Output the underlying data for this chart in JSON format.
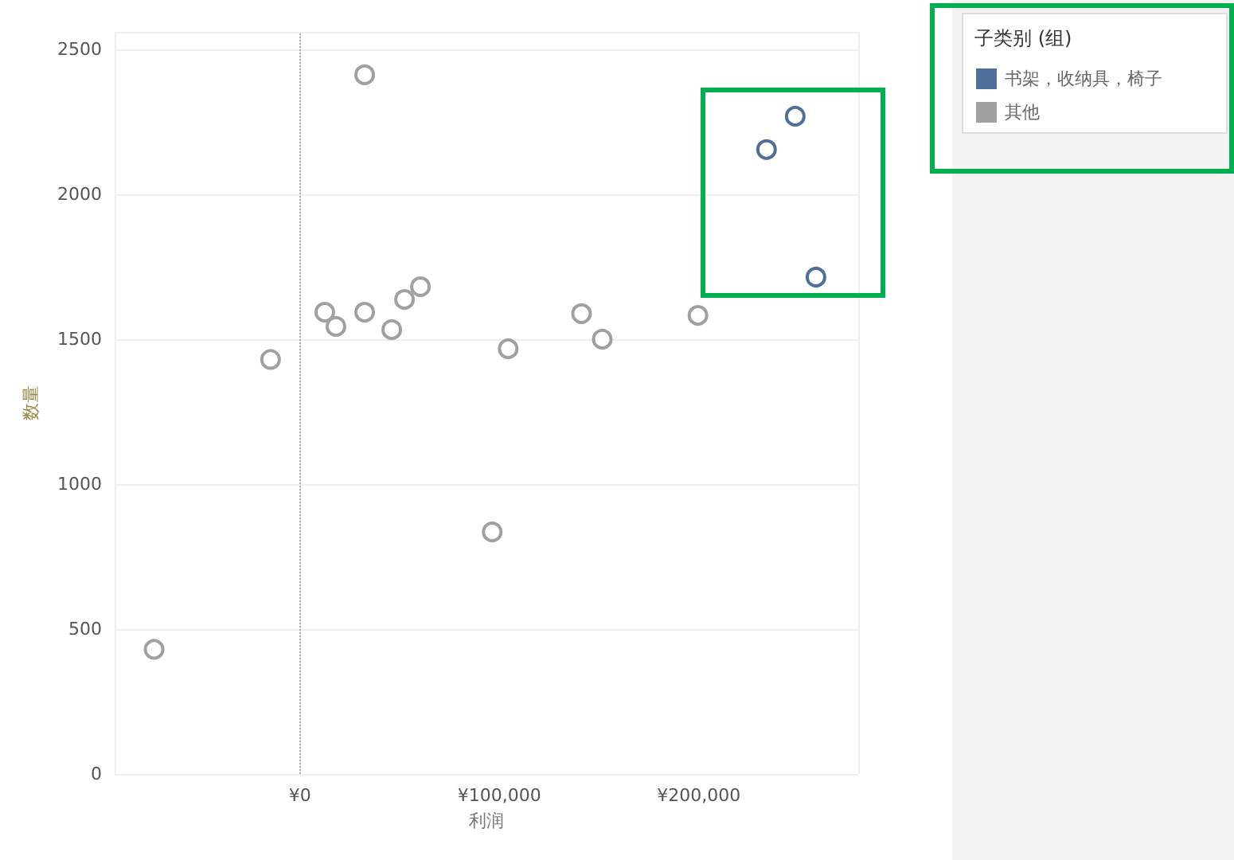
{
  "chart_data": {
    "type": "scatter",
    "xlabel": "利润",
    "ylabel": "数量",
    "legend_title": "子类别 (组)",
    "legend": "top right",
    "grid": true,
    "marker": "circle",
    "xlim": [
      -93000,
      280000
    ],
    "ylim": [
      0,
      2560
    ],
    "xticks": [
      {
        "value": 0,
        "label": "¥0"
      },
      {
        "value": 100000,
        "label": "¥100,000"
      },
      {
        "value": 200000,
        "label": "¥200,000"
      }
    ],
    "yticks": [
      0,
      500,
      1000,
      1500,
      2000,
      2500
    ],
    "ref_lines": [
      {
        "axis": "x",
        "value": 0,
        "color": "#aaaaaa",
        "line_style": "dotted"
      }
    ],
    "series": [
      {
        "name": "书架，收纳具，椅子",
        "color": "#4e6f9a",
        "x": [
          234000,
          248400,
          258800
        ],
        "values": [
          2154,
          2269,
          1714
        ]
      },
      {
        "name": "其他",
        "color": "#a0a0a0",
        "x": [
          -73200,
          -14800,
          12400,
          18000,
          32400,
          32400,
          46000,
          52400,
          60400,
          96400,
          104400,
          141200,
          151600,
          199600
        ],
        "values": [
          430,
          1430,
          1593,
          1544,
          2412,
          1593,
          1533,
          1637,
          1681,
          835,
          1467,
          1588,
          1500,
          1582
        ]
      }
    ]
  }
}
